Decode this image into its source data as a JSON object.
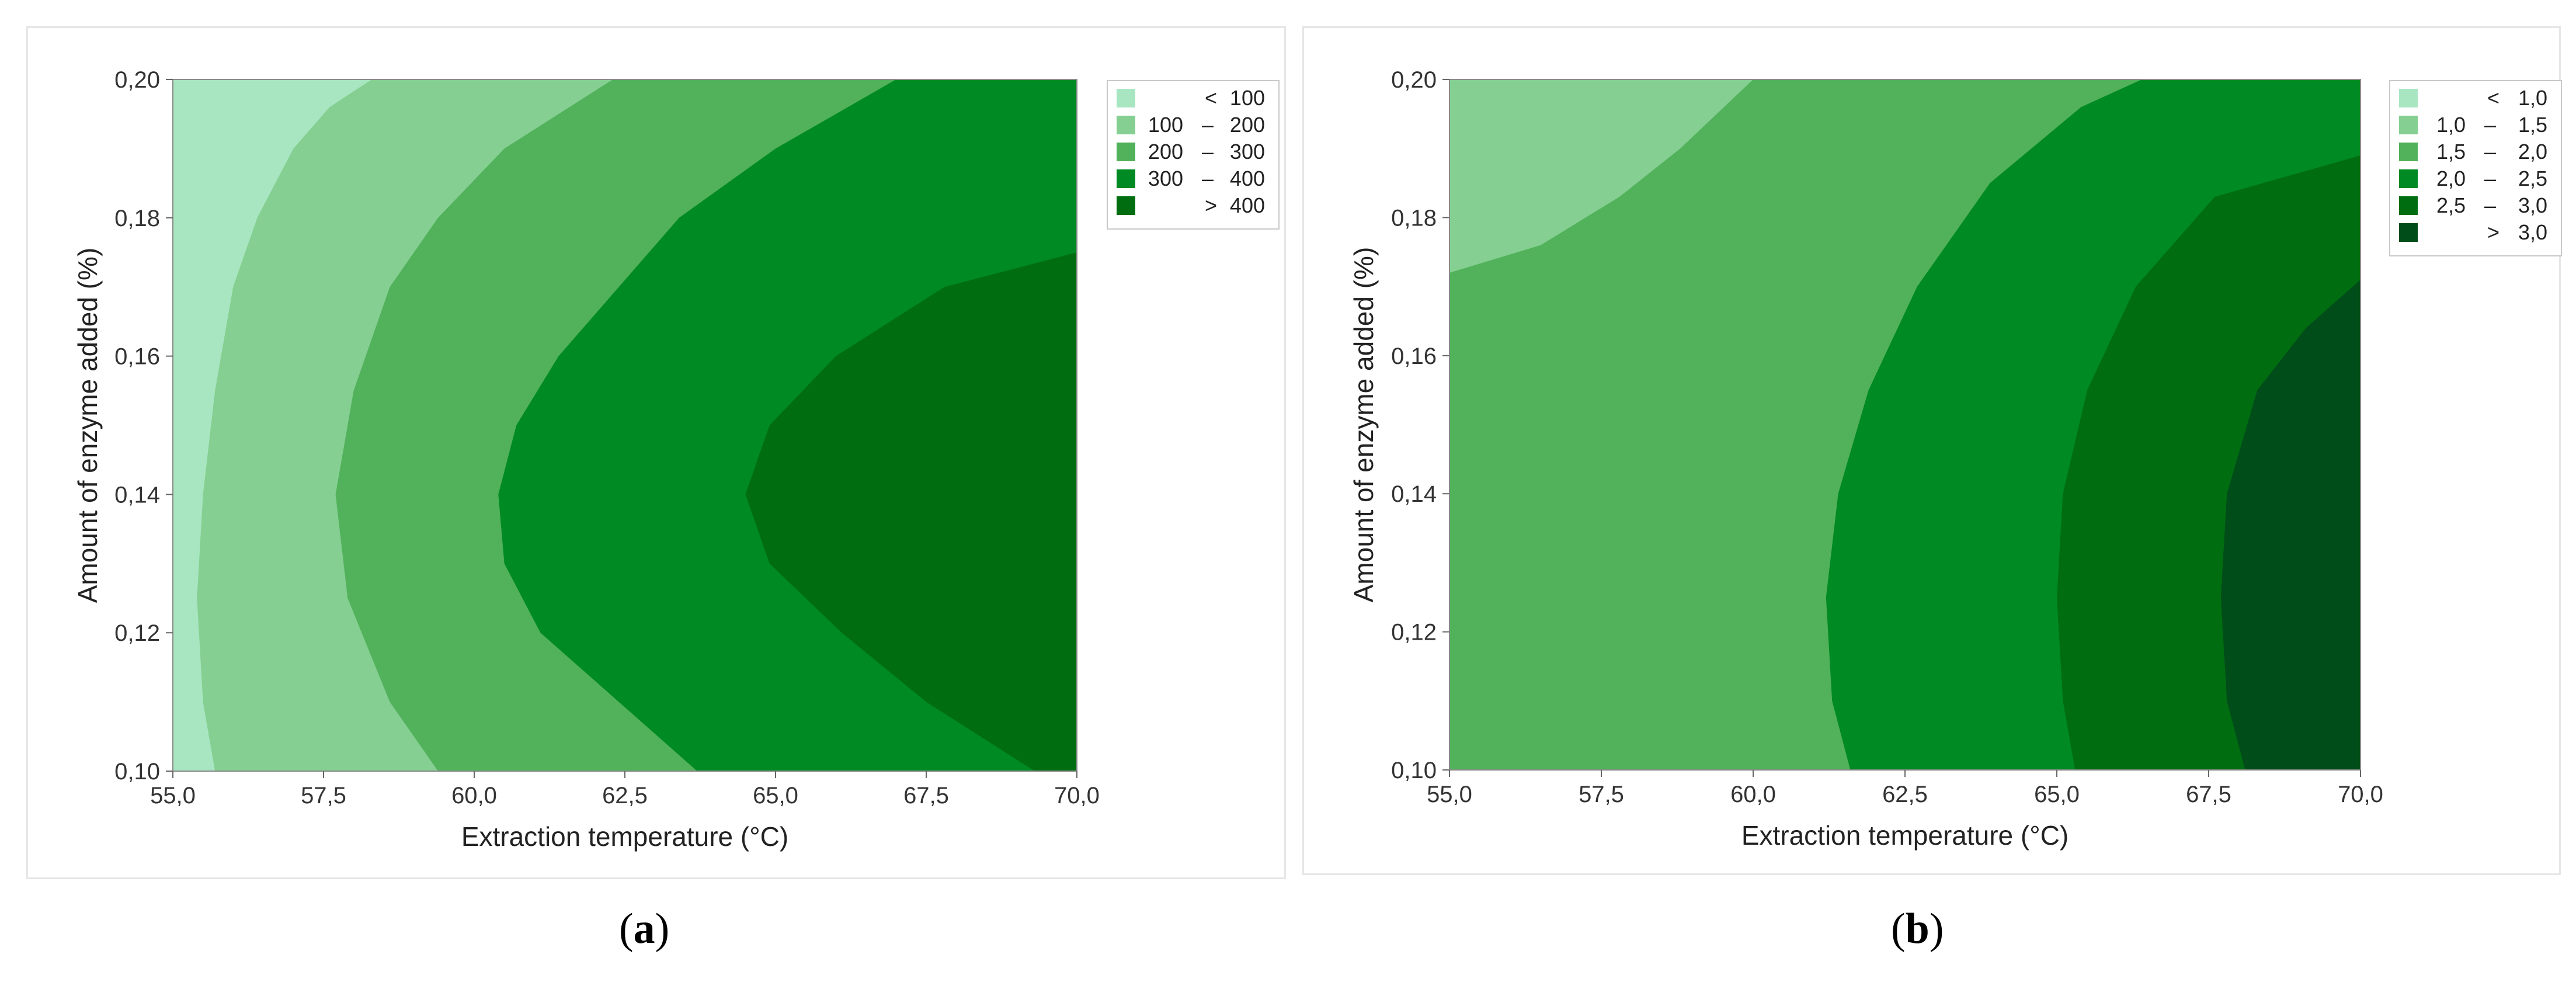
{
  "charts": [
    {
      "caption_letter": "a",
      "chart_data": {
        "type": "contour",
        "xlabel": "Extraction temperature (°C)",
        "ylabel": "Amount of enzyme added (%)",
        "xlim": [
          55.0,
          70.0
        ],
        "ylim": [
          0.1,
          0.2
        ],
        "x_ticks": [
          "55,0",
          "57,5",
          "60,0",
          "62,5",
          "65,0",
          "67,5",
          "70,0"
        ],
        "y_ticks": [
          "0,10",
          "0,12",
          "0,14",
          "0,16",
          "0,18",
          "0,20"
        ],
        "legend": {
          "placement": "top-right",
          "entries": [
            {
              "op": "<",
              "lo": "",
              "hi": "100",
              "color": "#a8e6c1"
            },
            {
              "op": "",
              "lo": "100",
              "hi": "200",
              "color": "#84cf91"
            },
            {
              "op": "",
              "lo": "200",
              "hi": "300",
              "color": "#52b15b"
            },
            {
              "op": "",
              "lo": "300",
              "hi": "400",
              "color": "#008a23"
            },
            {
              "op": ">",
              "lo": "",
              "hi": "400",
              "color": "#006e10"
            }
          ]
        },
        "boundaries": [
          {
            "level": "100",
            "points": [
              [
                55.7,
                0.1
              ],
              [
                55.5,
                0.11
              ],
              [
                55.4,
                0.125
              ],
              [
                55.5,
                0.14
              ],
              [
                55.7,
                0.155
              ],
              [
                56.0,
                0.17
              ],
              [
                56.4,
                0.18
              ],
              [
                57.0,
                0.19
              ],
              [
                57.6,
                0.196
              ],
              [
                58.3,
                0.2
              ]
            ]
          },
          {
            "level": "200",
            "points": [
              [
                59.4,
                0.1
              ],
              [
                58.6,
                0.11
              ],
              [
                57.9,
                0.125
              ],
              [
                57.7,
                0.14
              ],
              [
                58.0,
                0.155
              ],
              [
                58.6,
                0.17
              ],
              [
                59.4,
                0.18
              ],
              [
                60.5,
                0.19
              ],
              [
                62.3,
                0.2
              ]
            ]
          },
          {
            "level": "300",
            "points": [
              [
                63.7,
                0.1
              ],
              [
                62.4,
                0.11
              ],
              [
                61.1,
                0.12
              ],
              [
                60.5,
                0.13
              ],
              [
                60.4,
                0.14
              ],
              [
                60.7,
                0.15
              ],
              [
                61.4,
                0.16
              ],
              [
                62.4,
                0.17
              ],
              [
                63.4,
                0.18
              ],
              [
                65.0,
                0.19
              ],
              [
                67.0,
                0.2
              ]
            ]
          },
          {
            "level": "400",
            "points": [
              [
                69.3,
                0.1
              ],
              [
                67.5,
                0.11
              ],
              [
                66.1,
                0.12
              ],
              [
                64.9,
                0.13
              ],
              [
                64.5,
                0.14
              ],
              [
                64.9,
                0.15
              ],
              [
                66.0,
                0.16
              ],
              [
                67.8,
                0.17
              ],
              [
                70.0,
                0.175
              ]
            ]
          }
        ]
      }
    },
    {
      "caption_letter": "b",
      "chart_data": {
        "type": "contour",
        "xlabel": "Extraction temperature (°C)",
        "ylabel": "Amount of enzyme added (%)",
        "xlim": [
          55.0,
          70.0
        ],
        "ylim": [
          0.1,
          0.2
        ],
        "x_ticks": [
          "55,0",
          "57,5",
          "60,0",
          "62,5",
          "65,0",
          "67,5",
          "70,0"
        ],
        "y_ticks": [
          "0,10",
          "0,12",
          "0,14",
          "0,16",
          "0,18",
          "0,20"
        ],
        "legend": {
          "placement": "top-right",
          "entries": [
            {
              "op": "<",
              "lo": "",
              "hi": "1,0",
              "color": "#a8e6c1"
            },
            {
              "op": "",
              "lo": "1,0",
              "hi": "1,5",
              "color": "#84cf91"
            },
            {
              "op": "",
              "lo": "1,5",
              "hi": "2,0",
              "color": "#52b15b"
            },
            {
              "op": "",
              "lo": "2,0",
              "hi": "2,5",
              "color": "#008a23"
            },
            {
              "op": "",
              "lo": "2,5",
              "hi": "3,0",
              "color": "#006e10"
            },
            {
              "op": ">",
              "lo": "",
              "hi": "3,0",
              "color": "#004d19"
            }
          ]
        },
        "boundaries": [
          {
            "level": "1,5",
            "points": [
              [
                55.0,
                0.172
              ],
              [
                56.5,
                0.176
              ],
              [
                57.8,
                0.183
              ],
              [
                58.8,
                0.19
              ],
              [
                60.0,
                0.2
              ]
            ]
          },
          {
            "level": "2,0",
            "points": [
              [
                61.6,
                0.1
              ],
              [
                61.3,
                0.11
              ],
              [
                61.2,
                0.125
              ],
              [
                61.4,
                0.14
              ],
              [
                61.9,
                0.155
              ],
              [
                62.7,
                0.17
              ],
              [
                63.9,
                0.185
              ],
              [
                65.4,
                0.196
              ],
              [
                66.4,
                0.2
              ]
            ]
          },
          {
            "level": "2,5",
            "points": [
              [
                65.3,
                0.1
              ],
              [
                65.1,
                0.11
              ],
              [
                65.0,
                0.125
              ],
              [
                65.1,
                0.14
              ],
              [
                65.5,
                0.155
              ],
              [
                66.3,
                0.17
              ],
              [
                67.6,
                0.183
              ],
              [
                70.0,
                0.189
              ]
            ]
          },
          {
            "level": "3,0",
            "points": [
              [
                68.1,
                0.1
              ],
              [
                67.8,
                0.11
              ],
              [
                67.7,
                0.125
              ],
              [
                67.8,
                0.14
              ],
              [
                68.3,
                0.155
              ],
              [
                69.1,
                0.164
              ],
              [
                70.0,
                0.171
              ]
            ]
          }
        ]
      }
    }
  ]
}
